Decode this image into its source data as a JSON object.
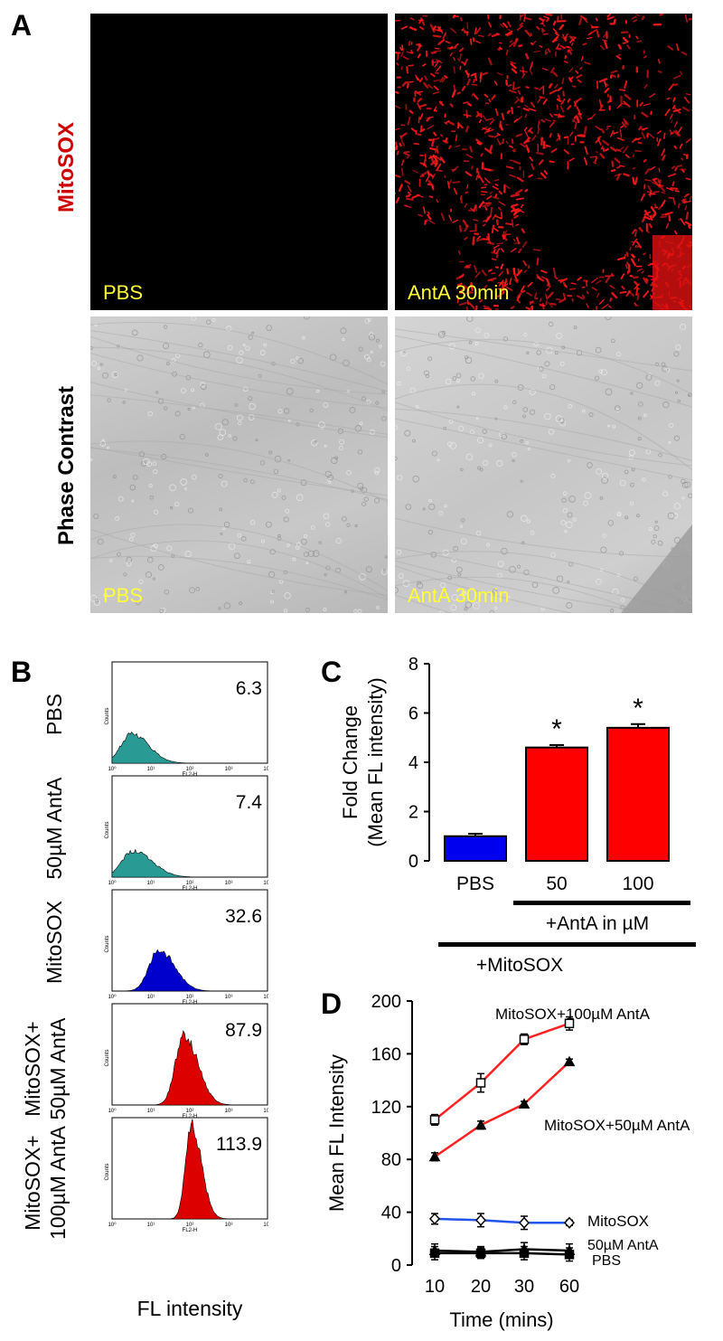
{
  "panelA": {
    "letter": "A",
    "row_labels": [
      "MitoSOX",
      "Phase Contrast"
    ],
    "panels": [
      {
        "label": "PBS"
      },
      {
        "label": "AntA 30min"
      },
      {
        "label": "PBS"
      },
      {
        "label": "AntA 30min"
      }
    ],
    "colors": {
      "mitosox_label": "#cc0000",
      "overlay_text": "#ffff33",
      "stain": "#ff1a1a"
    }
  },
  "panelB": {
    "letter": "B",
    "xlabel": "FL intensity",
    "axis_tick_labels": [
      "10⁰",
      "10¹",
      "10²",
      "10³",
      "10⁴"
    ],
    "axis_x_title": "FL2-H",
    "axis_y_title": "Counts",
    "histograms": [
      {
        "label_lines": [
          "PBS"
        ],
        "value": "6.3",
        "color": "#2a9a95",
        "peak_decade": 0.5,
        "spread": 0.35,
        "height_frac": 0.3
      },
      {
        "label_lines": [
          "50µM AntA"
        ],
        "value": "7.4",
        "color": "#2a9a95",
        "peak_decade": 0.55,
        "spread": 0.38,
        "height_frac": 0.27
      },
      {
        "label_lines": [
          "MitoSOX"
        ],
        "value": "32.6",
        "color": "#0000cc",
        "peak_decade": 1.2,
        "spread": 0.32,
        "height_frac": 0.42
      },
      {
        "label_lines": [
          "MitoSOX+",
          "50µM AntA"
        ],
        "value": "87.9",
        "color": "#dd0000",
        "peak_decade": 1.85,
        "spread": 0.28,
        "height_frac": 0.72
      },
      {
        "label_lines": [
          "MitoSOX+",
          "100µM AntA"
        ],
        "value": "113.9",
        "color": "#dd0000",
        "peak_decade": 2.05,
        "spread": 0.2,
        "height_frac": 0.95
      }
    ]
  },
  "chart_data": [
    {
      "type": "bar",
      "panel": "C",
      "title": "",
      "xlabel": "",
      "ylabel": "Fold Change (Mean FL intensity)",
      "ylabel_lines": [
        "Fold Change",
        "(Mean FL intensity)"
      ],
      "ylim": [
        0,
        8
      ],
      "yticks": [
        0,
        2,
        4,
        6,
        8
      ],
      "categories": [
        "PBS",
        "50",
        "100"
      ],
      "values": [
        1.0,
        4.6,
        5.4
      ],
      "errors": [
        0.1,
        0.1,
        0.15
      ],
      "colors": [
        "#0000ee",
        "#ff0000",
        "#ff0000"
      ],
      "significance": [
        "",
        "*",
        "*"
      ],
      "group_labels": [
        {
          "label": "+AntA in µM",
          "from": 1,
          "to": 2
        },
        {
          "label": "+MitoSOX",
          "from": 0,
          "to": 2
        }
      ]
    },
    {
      "type": "line",
      "panel": "D",
      "title": "",
      "xlabel": "Time (mins)",
      "ylabel": "Mean FL Intensity",
      "categories": [
        "10",
        "20",
        "30",
        "60"
      ],
      "ylim": [
        0,
        200
      ],
      "yticks": [
        0,
        40,
        80,
        120,
        160,
        200
      ],
      "series": [
        {
          "name": "MitoSOX+100µM AntA",
          "values": [
            110,
            138,
            171,
            183
          ],
          "errors": [
            4,
            7,
            4,
            5
          ],
          "color": "#ff2222",
          "marker": "square"
        },
        {
          "name": "MitoSOX+50µM AntA",
          "values": [
            82,
            106,
            122,
            154
          ],
          "errors": [
            3,
            3,
            2,
            2
          ],
          "color": "#ff2222",
          "marker": "triangle"
        },
        {
          "name": "MitoSOX",
          "values": [
            35,
            34,
            32,
            32
          ],
          "errors": [
            4,
            5,
            5,
            2
          ],
          "color": "#2255ee",
          "marker": "diamond"
        },
        {
          "name": "50µM AntA",
          "values": [
            11,
            10,
            12,
            11
          ],
          "errors": [
            5,
            4,
            5,
            5
          ],
          "color": "#000000",
          "marker": "triangle"
        },
        {
          "name": "PBS",
          "values": [
            9,
            9,
            9,
            8
          ],
          "errors": [
            5,
            4,
            5,
            5
          ],
          "color": "#000000",
          "marker": "square"
        }
      ]
    }
  ]
}
